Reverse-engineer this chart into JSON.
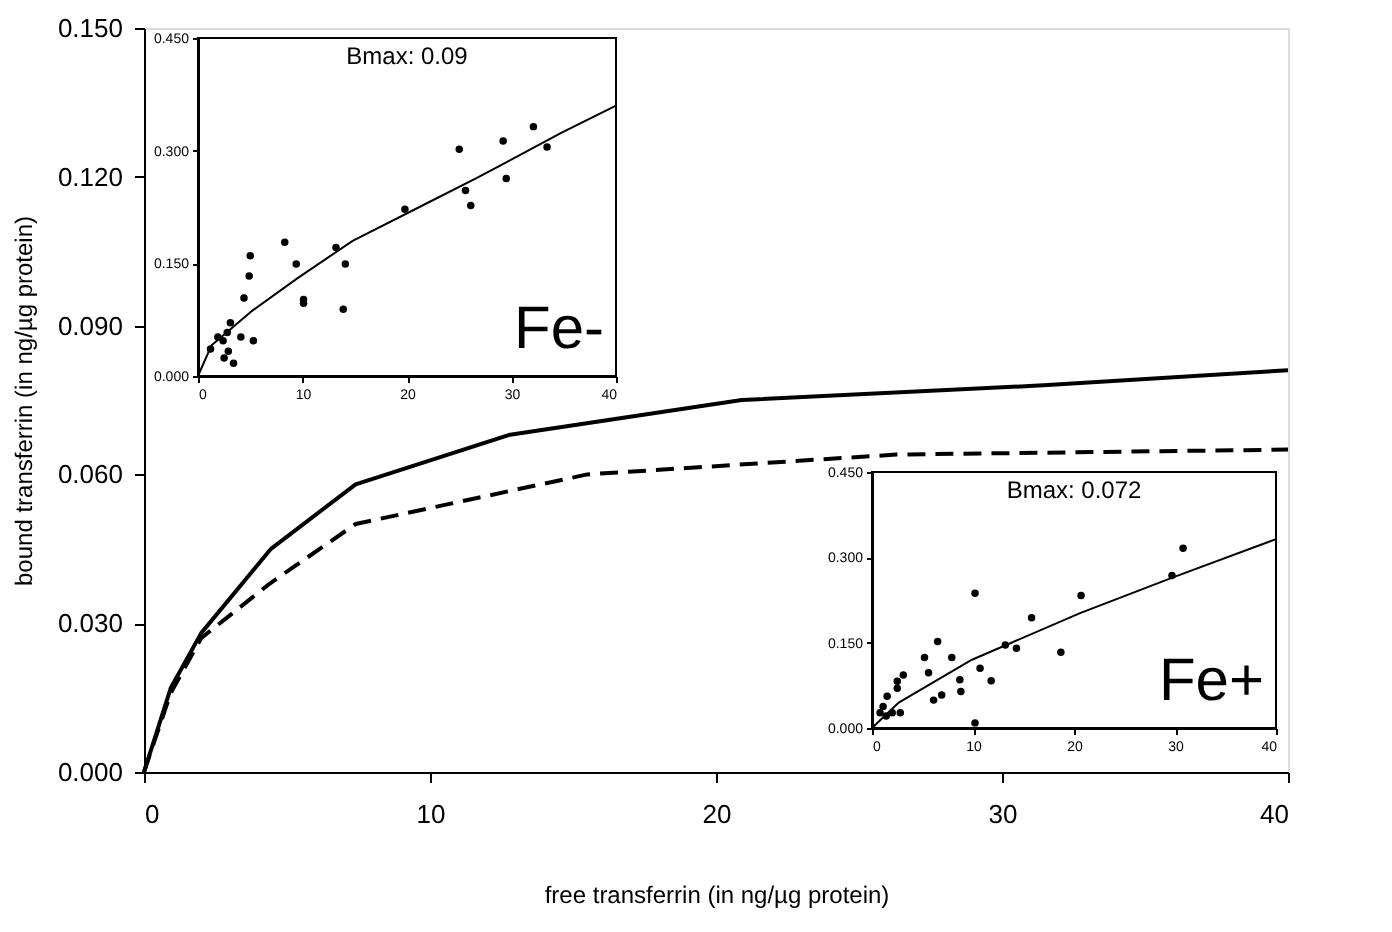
{
  "chart_data": [
    {
      "type": "line",
      "xlabel": "free transferrin (in ng/µg protein)",
      "ylabel": "bound transferrin (in ng/µg protein)",
      "xlim": [
        0,
        40
      ],
      "ylim": [
        0,
        0.15
      ],
      "xticks": [
        0,
        10,
        20,
        30,
        40
      ],
      "yticks": [
        {
          "value": 0,
          "label": "0.000"
        },
        {
          "value": 0.03,
          "label": "0.030"
        },
        {
          "value": 0.06,
          "label": "0.060"
        },
        {
          "value": 0.09,
          "label": "0.090"
        },
        {
          "value": 0.12,
          "label": "0.120"
        },
        {
          "value": 0.15,
          "label": "0.150"
        }
      ],
      "grid": false,
      "marker": "none",
      "series": [
        {
          "color": "#000000",
          "line_style": "solid",
          "x": [
            0,
            0.94,
            2.0,
            4.44,
            7.4,
            12.8,
            20.9,
            31.6,
            40
          ],
          "values": [
            0,
            0.017,
            0.028,
            0.045,
            0.058,
            0.068,
            0.075,
            0.078,
            0.081
          ]
        },
        {
          "color": "#000000",
          "line_style": "dashed",
          "x": [
            0,
            0.94,
            2.0,
            4.4,
            7.4,
            15.5,
            26.3,
            40
          ],
          "values": [
            0,
            0.016,
            0.027,
            0.038,
            0.05,
            0.06,
            0.064,
            0.065
          ]
        }
      ]
    },
    {
      "type": "scatter",
      "annotations": [
        "Bmax: 0.09",
        "Fe-"
      ],
      "xlim": [
        0,
        40
      ],
      "ylim": [
        0,
        0.45
      ],
      "xticks": [
        0,
        10,
        20,
        30,
        40
      ],
      "yticks": [
        {
          "value": 0,
          "label": "0.000"
        },
        {
          "value": 0.15,
          "label": "0.150"
        },
        {
          "value": 0.3,
          "label": "0.300"
        },
        {
          "value": 0.45,
          "label": "0.450"
        }
      ],
      "grid": false,
      "series": [
        {
          "type": "scatter",
          "marker": "circle",
          "color": "#000000",
          "x": [
            1.2,
            1.9,
            2.4,
            2.8,
            3.1,
            2.9,
            3.4,
            2.5,
            4.1,
            4.4,
            4.9,
            5.0,
            5.3,
            8.3,
            9.4,
            10.1,
            10.1,
            13.2,
            13.9,
            14.1,
            19.8,
            25.0,
            25.6,
            26.1,
            29.2,
            29.5,
            32.1,
            33.4
          ],
          "values": [
            0.036,
            0.052,
            0.047,
            0.058,
            0.071,
            0.033,
            0.017,
            0.024,
            0.052,
            0.104,
            0.133,
            0.16,
            0.047,
            0.178,
            0.149,
            0.102,
            0.097,
            0.171,
            0.089,
            0.149,
            0.222,
            0.302,
            0.247,
            0.227,
            0.313,
            0.263,
            0.332,
            0.305
          ]
        },
        {
          "type": "line",
          "marker": "none",
          "line_style": "solid",
          "color": "#000000",
          "x": [
            0,
            1.3,
            5.1,
            9.5,
            14.8,
            21.9,
            26.6,
            34.8,
            40
          ],
          "values": [
            0,
            0.041,
            0.086,
            0.13,
            0.18,
            0.23,
            0.263,
            0.324,
            0.36
          ]
        }
      ]
    },
    {
      "type": "scatter",
      "annotations": [
        "Bmax: 0.072",
        "Fe+"
      ],
      "xlim": [
        0,
        40
      ],
      "ylim": [
        0,
        0.45
      ],
      "xticks": [
        0,
        10,
        20,
        30,
        40
      ],
      "yticks": [
        {
          "value": 0,
          "label": "0.000"
        },
        {
          "value": 0.15,
          "label": "0.150"
        },
        {
          "value": 0.3,
          "label": "0.300"
        },
        {
          "value": 0.45,
          "label": "0.450"
        }
      ],
      "grid": false,
      "series": [
        {
          "type": "scatter",
          "marker": "circle",
          "color": "#000000",
          "x": [
            10.2,
            20.7,
            30.8,
            29.7,
            15.8,
            18.7,
            13.2,
            14.3,
            10.7,
            11.8,
            8.7,
            8.8,
            6.5,
            5.2,
            5.6,
            7.9,
            6.9,
            6.1,
            3.1,
            2.5,
            2.5,
            1.5,
            1.1,
            0.8,
            1.4,
            2.0,
            2.8,
            10.2
          ],
          "values": [
            0.237,
            0.233,
            0.316,
            0.268,
            0.194,
            0.133,
            0.146,
            0.14,
            0.105,
            0.083,
            0.085,
            0.064,
            0.152,
            0.124,
            0.097,
            0.124,
            0.058,
            0.049,
            0.093,
            0.082,
            0.07,
            0.056,
            0.038,
            0.027,
            0.021,
            0.027,
            0.027,
            0.009
          ]
        },
        {
          "type": "line",
          "marker": "none",
          "line_style": "solid",
          "color": "#000000",
          "x": [
            0,
            2.6,
            9.9,
            20.6,
            30.0,
            40
          ],
          "values": [
            0,
            0.044,
            0.12,
            0.202,
            0.266,
            0.332
          ]
        }
      ]
    }
  ]
}
